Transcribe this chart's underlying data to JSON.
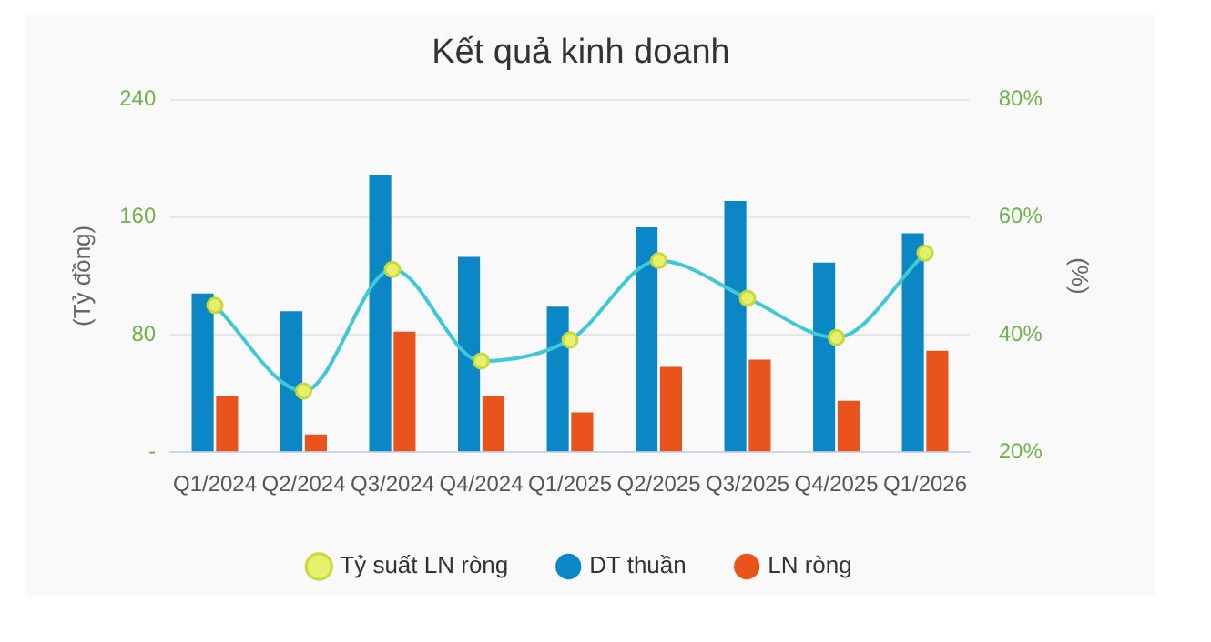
{
  "chart_data": {
    "type": "bar",
    "title": "Kết quả kinh doanh",
    "ylabel": "(Tỷ đồng)",
    "y2label": "(%)",
    "categories": [
      "Q1/2024",
      "Q2/2024",
      "Q3/2024",
      "Q4/2024",
      "Q1/2025",
      "Q2/2025",
      "Q3/2025",
      "Q4/2025",
      "Q1/2026"
    ],
    "series": [
      {
        "name": "DT thuần",
        "color": "#0a87c4",
        "values": [
          108,
          96,
          189,
          133,
          99,
          153,
          171,
          129,
          149
        ]
      },
      {
        "name": "LN ròng",
        "color": "#e8541c",
        "values": [
          38,
          12,
          82,
          38,
          27,
          58,
          63,
          35,
          69
        ]
      },
      {
        "name": "Tỷ suất LN ròng",
        "type": "line",
        "axis": "y2",
        "color": "#3ec8d8",
        "marker": "circle",
        "values": [
          45.0,
          30.4,
          51.1,
          35.5,
          39.1,
          52.6,
          46.2,
          39.5,
          53.9
        ]
      }
    ],
    "ylim": [
      0,
      240
    ],
    "yticks": [
      {
        "value": 0,
        "label": "-"
      },
      80,
      160,
      240
    ],
    "y2lim": [
      20,
      80
    ],
    "y2ticks": [
      {
        "value": 20,
        "label": "20%"
      },
      {
        "value": 40,
        "label": "40%"
      },
      {
        "value": 60,
        "label": "60%"
      },
      {
        "value": 80,
        "label": "80%"
      }
    ],
    "grid": "y",
    "legend": "bottom"
  }
}
